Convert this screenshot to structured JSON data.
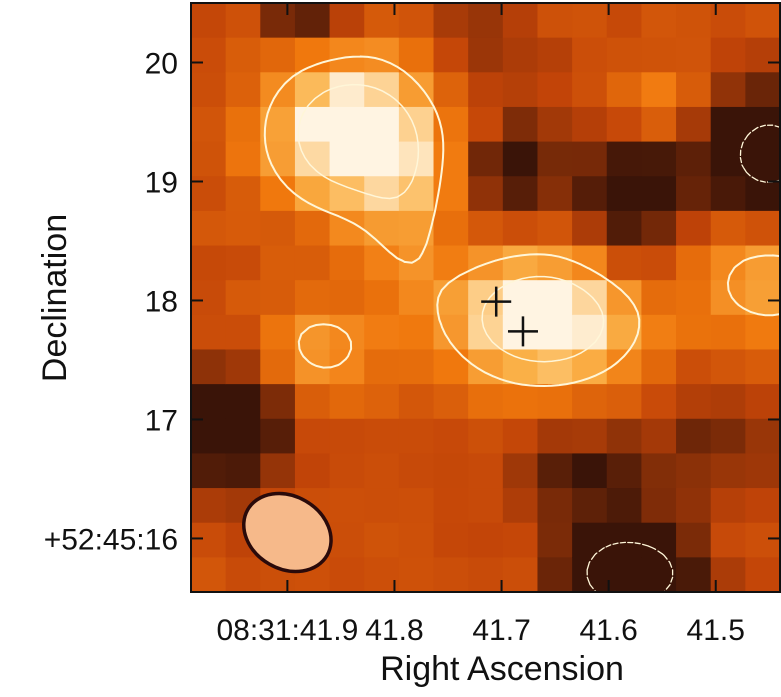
{
  "chart_data": {
    "type": "heatmap",
    "title": "",
    "xlabel": "Right Ascension",
    "ylabel": "Declination",
    "x_ticks": [
      {
        "value": 41.9,
        "label": "08:31:41.9"
      },
      {
        "value": 41.8,
        "label": "41.8"
      },
      {
        "value": 41.7,
        "label": "41.7"
      },
      {
        "value": 41.6,
        "label": "41.6"
      },
      {
        "value": 41.5,
        "label": "41.5"
      }
    ],
    "y_ticks": [
      {
        "value": 20,
        "label": "20"
      },
      {
        "value": 19,
        "label": "19"
      },
      {
        "value": 18,
        "label": "18"
      },
      {
        "value": 17,
        "label": "17"
      },
      {
        "value": 16,
        "label": "+52:45:16"
      }
    ],
    "xlim": [
      41.99,
      41.44
    ],
    "ylim": [
      15.55,
      20.5
    ],
    "colormap": [
      "#3a1408",
      "#c24408",
      "#f0780d",
      "#fbb34a",
      "#fff4e2"
    ],
    "grid": false,
    "sources": [
      {
        "ra": 41.705,
        "dec": 17.99
      },
      {
        "ra": 41.68,
        "dec": 17.74
      }
    ],
    "beam": {
      "ra": 41.9,
      "dec": 16.05,
      "major_arcsec": 0.77,
      "minor_arcsec": 0.51,
      "angle_deg": 30,
      "fill": "#f6b98a",
      "edge": "#2a0a0a"
    },
    "contour_color": "#fff6d8"
  }
}
